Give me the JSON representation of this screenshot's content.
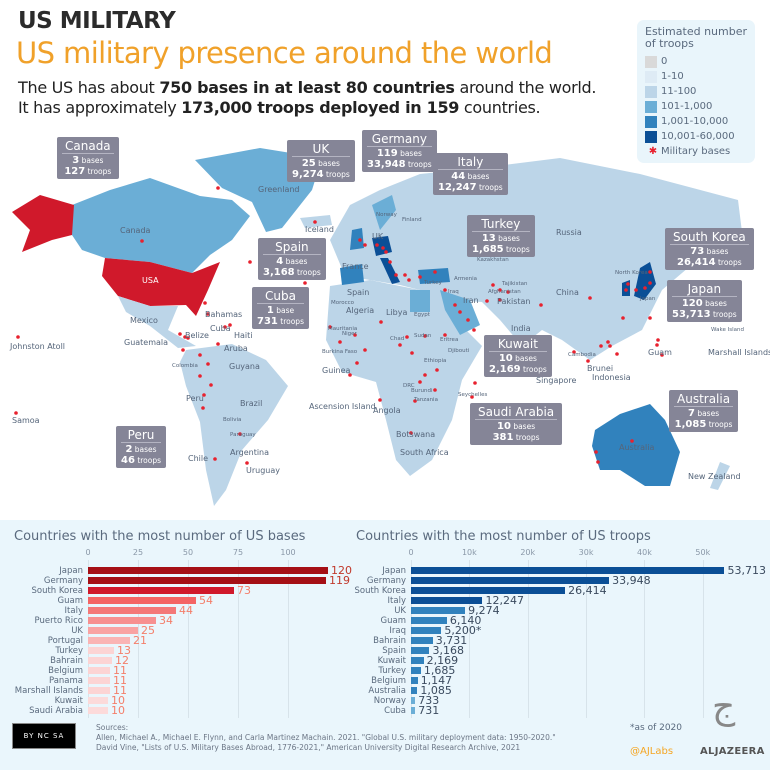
{
  "header": {
    "kicker": "US MILITARY",
    "headline": "US military presence around the world",
    "line1": {
      "a": "The US has about ",
      "b": "750 bases in at least 80 countries",
      "c": " around the world."
    },
    "line2": {
      "a": "It has approximately ",
      "b": "173,000 troops deployed in 159",
      "c": " countries."
    }
  },
  "legend": {
    "title": "Estimated number of troops",
    "items": [
      {
        "label": "0",
        "color": "#d9d9d9"
      },
      {
        "label": "1-10",
        "color": "#deebf5"
      },
      {
        "label": "11-100",
        "color": "#bcd5e8"
      },
      {
        "label": "101-1,000",
        "color": "#6baed6"
      },
      {
        "label": "1,001-10,000",
        "color": "#3182bd"
      },
      {
        "label": "10,001-60,000",
        "color": "#0b4f96"
      }
    ],
    "bases_label": "Military bases",
    "bases_color": "#e8212e"
  },
  "map": {
    "labels": [
      "Canada",
      "Greenland",
      "Iceland",
      "UK",
      "France",
      "Spain",
      "Norway",
      "Finland",
      "USA",
      "Mexico",
      "Bahamas",
      "Cuba",
      "Haiti",
      "Belize",
      "Guatemala",
      "Aruba",
      "Colombia",
      "Guyana",
      "Peru",
      "Brazil",
      "Bolivia",
      "Paraguay",
      "Chile",
      "Argentina",
      "Uruguay",
      "Johnston Atoll",
      "Samoa",
      "Morocco",
      "Algeria",
      "Libya",
      "Egypt",
      "Mauritania",
      "Niger",
      "Chad",
      "Sudan",
      "Eritrea",
      "Burkina Faso",
      "Guinea",
      "Djibouti",
      "Ethiopia",
      "DRC",
      "Burundi",
      "Tanzania",
      "Seychelles",
      "Ascension Island",
      "Angola",
      "Botswana",
      "South Africa",
      "Russia",
      "Kazakhstan",
      "Armenia",
      "Turkey",
      "Iraq",
      "Iran",
      "Tajikistan",
      "Afghanistan",
      "Pakistan",
      "India",
      "China",
      "North Korea",
      "Japan",
      "Wake Island",
      "Guam",
      "Marshall Islands",
      "Cambodia",
      "Brunei",
      "Indonesia",
      "Singapore",
      "Australia",
      "New Zealand"
    ],
    "callouts": [
      {
        "country": "Canada",
        "bases": "3",
        "bases_unit": "bases",
        "troops": "127"
      },
      {
        "country": "UK",
        "bases": "25",
        "bases_unit": "bases",
        "troops": "9,274"
      },
      {
        "country": "Germany",
        "bases": "119",
        "bases_unit": "bases",
        "troops": "33,948"
      },
      {
        "country": "Italy",
        "bases": "44",
        "bases_unit": "bases",
        "troops": "12,247"
      },
      {
        "country": "Spain",
        "bases": "4",
        "bases_unit": "bases",
        "troops": "3,168"
      },
      {
        "country": "Cuba",
        "bases": "1",
        "bases_unit": "base",
        "troops": "731"
      },
      {
        "country": "Turkey",
        "bases": "13",
        "bases_unit": "bases",
        "troops": "1,685"
      },
      {
        "country": "South Korea",
        "bases": "73",
        "bases_unit": "bases",
        "troops": "26,414"
      },
      {
        "country": "Japan",
        "bases": "120",
        "bases_unit": "bases",
        "troops": "53,713"
      },
      {
        "country": "Kuwait",
        "bases": "10",
        "bases_unit": "bases",
        "troops": "2,169"
      },
      {
        "country": "Saudi Arabia",
        "bases": "10",
        "bases_unit": "bases",
        "troops": "381"
      },
      {
        "country": "Australia",
        "bases": "7",
        "bases_unit": "bases",
        "troops": "1,085"
      },
      {
        "country": "Peru",
        "bases": "2",
        "bases_unit": "bases",
        "troops": "46"
      }
    ],
    "troops_unit": "troops",
    "us_color": "#d0192b"
  },
  "chart_data": [
    {
      "type": "bar",
      "orientation": "horizontal",
      "title": "Countries with the most number of US bases",
      "categories": [
        "Japan",
        "Germany",
        "South Korea",
        "Guam",
        "Italy",
        "Puerto Rico",
        "UK",
        "Portugal",
        "Turkey",
        "Bahrain",
        "Belgium",
        "Panama",
        "Marshall Islands",
        "Kuwait",
        "Saudi Arabia"
      ],
      "values": [
        120,
        119,
        73,
        54,
        44,
        34,
        25,
        21,
        13,
        12,
        11,
        11,
        11,
        10,
        10
      ],
      "value_labels": [
        "120",
        "119",
        "73",
        "54",
        "44",
        "34",
        "25",
        "21",
        "13",
        "12",
        "11",
        "11",
        "11",
        "10",
        "10"
      ],
      "xticks": [
        "0",
        "25",
        "50",
        "75",
        "100"
      ],
      "xlim": [
        0,
        120
      ],
      "grid": true,
      "color": "#d0192b"
    },
    {
      "type": "bar",
      "orientation": "horizontal",
      "title": "Countries with the most number of US troops",
      "categories": [
        "Japan",
        "Germany",
        "South Korea",
        "Italy",
        "UK",
        "Guam",
        "Iraq",
        "Bahrain",
        "Spain",
        "Kuwait",
        "Turkey",
        "Belgium",
        "Australia",
        "Norway",
        "Cuba"
      ],
      "values": [
        53713,
        33948,
        26414,
        12247,
        9274,
        6140,
        5200,
        3731,
        3168,
        2169,
        1685,
        1147,
        1085,
        733,
        731
      ],
      "value_labels": [
        "53,713",
        "33,948",
        "26,414",
        "12,247",
        "9,274",
        "6,140",
        "5,200*",
        "3,731",
        "3,168",
        "2,169",
        "1,685",
        "1,147",
        "1,085",
        "733",
        "731"
      ],
      "xticks": [
        "0",
        "10k",
        "20k",
        "30k",
        "40k",
        "50k"
      ],
      "xlim": [
        0,
        55000
      ],
      "grid": true,
      "color": "#0b4f96"
    }
  ],
  "footer": {
    "sources_title": "Sources:",
    "source1": "Allen, Michael A., Michael E. Flynn, and Carla Martinez Machain. 2021. \"Global U.S. military deployment data: 1950-2020.\"",
    "source2": "David Vine, \"Lists of U.S. Military Bases Abroad, 1776-2021,\" American University Digital Research Archive, 2021",
    "license": "BY NC SA",
    "note": "*as of 2020",
    "handle": "@AJLabs",
    "brand": "ALJAZEERA"
  }
}
